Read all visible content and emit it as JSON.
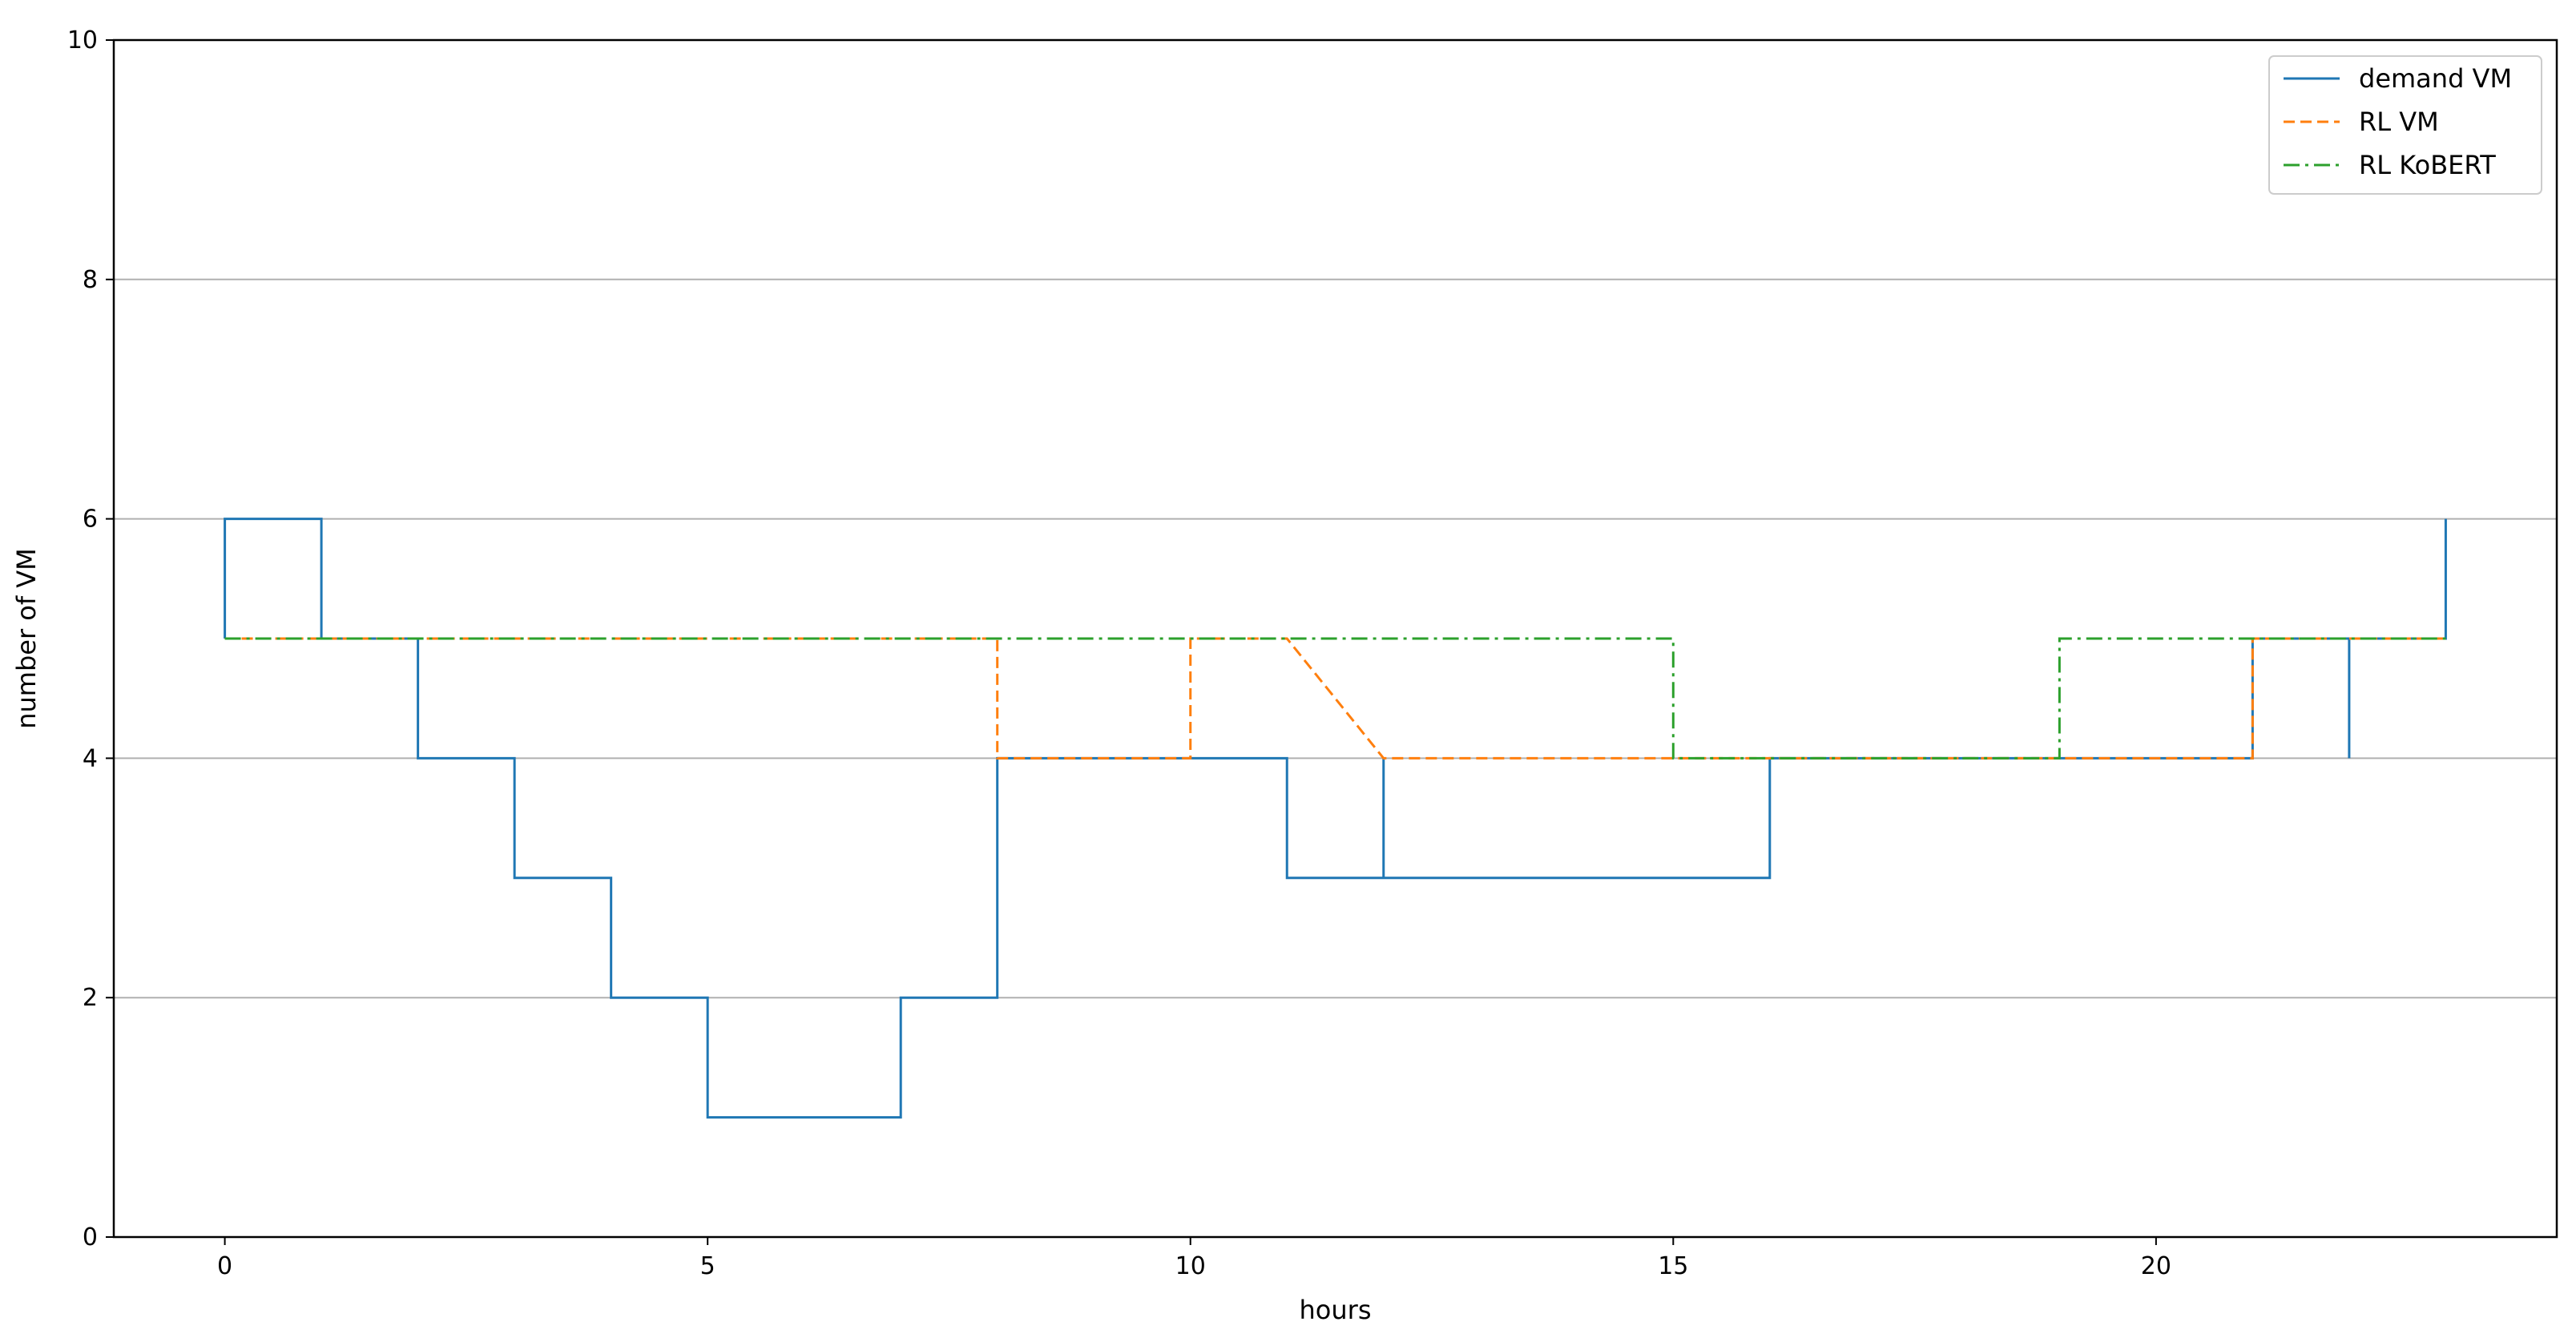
{
  "chart_data": {
    "type": "line",
    "title": "",
    "xlabel": "hours",
    "ylabel": "number of VM",
    "xlim": [
      -1.15,
      24.15
    ],
    "ylim": [
      0,
      10
    ],
    "xticks": [
      0,
      5,
      10,
      15,
      20
    ],
    "yticks": [
      0,
      2,
      4,
      6,
      8,
      10
    ],
    "grid": "horizontal",
    "legend_position": "top-right",
    "series": [
      {
        "name": "demand VM",
        "color": "#1f77b4",
        "style": "solid",
        "points": [
          [
            0,
            5
          ],
          [
            0,
            6
          ],
          [
            1,
            6
          ],
          [
            1,
            5
          ],
          [
            2,
            5
          ],
          [
            2,
            4
          ],
          [
            3,
            4
          ],
          [
            3,
            3
          ],
          [
            4,
            3
          ],
          [
            4,
            2
          ],
          [
            5,
            2
          ],
          [
            5,
            1
          ],
          [
            7,
            1
          ],
          [
            7,
            2
          ],
          [
            8,
            2
          ],
          [
            8,
            4
          ],
          [
            11,
            4
          ],
          [
            11,
            3
          ],
          [
            12,
            3
          ],
          [
            12,
            4
          ],
          [
            12,
            3
          ],
          [
            16,
            3
          ],
          [
            16,
            4
          ],
          [
            21,
            4
          ],
          [
            21,
            5
          ],
          [
            22,
            5
          ],
          [
            22,
            4
          ],
          [
            22,
            5
          ],
          [
            23,
            5
          ],
          [
            23,
            6
          ]
        ]
      },
      {
        "name": "RL VM",
        "color": "#ff7f0e",
        "style": "dashed",
        "points": [
          [
            0,
            5
          ],
          [
            8,
            5
          ],
          [
            8,
            4
          ],
          [
            10,
            4
          ],
          [
            10,
            5
          ],
          [
            11,
            5
          ],
          [
            12,
            4
          ],
          [
            21,
            4
          ],
          [
            21,
            5
          ],
          [
            23,
            5
          ]
        ]
      },
      {
        "name": "RL KoBERT",
        "color": "#2ca02c",
        "style": "dashdot",
        "points": [
          [
            0,
            5
          ],
          [
            15,
            5
          ],
          [
            15,
            4
          ],
          [
            19,
            4
          ],
          [
            19,
            5
          ],
          [
            23,
            5
          ]
        ]
      }
    ]
  }
}
